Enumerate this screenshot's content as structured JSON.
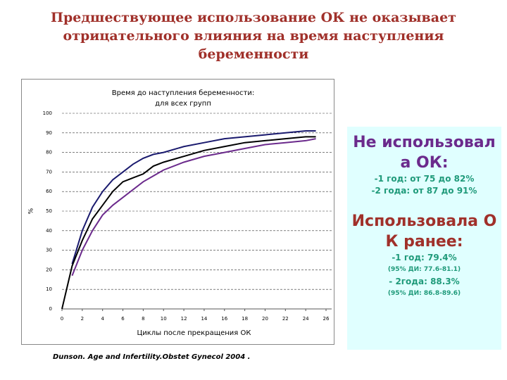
{
  "slide": {
    "title": "Предшествующее использование ОК не оказывает отрицательного влияния на время наступления беременности",
    "citation": "Dunson. Age and Infertility.Obstet Gynecol 2004 .",
    "side_box": {
      "heading1": "Не использовала ОК:",
      "items1": [
        "-1 год: от 75 до 82%",
        "-2 года: от 87 до 91%"
      ],
      "heading2": "Использовала ОК ранее:",
      "items2": [
        "-1 год: 79.4%",
        "(95% ДИ: 77.6-81.1)",
        "- 2года: 88.3%",
        "(95% ДИ: 86.8-89.6)"
      ]
    }
  },
  "chart_data": {
    "type": "line",
    "title": "Время до наступления беременности: для всех групп",
    "xlabel": "Циклы после прекращения ОК",
    "ylabel": "%",
    "x": [
      0,
      1,
      2,
      3,
      4,
      5,
      6,
      7,
      8,
      9,
      10,
      12,
      14,
      16,
      18,
      20,
      22,
      24,
      25
    ],
    "series": [
      {
        "color": "#1a1a6e",
        "values": [
          null,
          23,
          40,
          52,
          60,
          66,
          70,
          74,
          77,
          79,
          80,
          83,
          85,
          87,
          88,
          89,
          90,
          91,
          91
        ]
      },
      {
        "color": "#000000",
        "values": [
          0,
          22,
          35,
          46,
          53,
          60,
          65,
          67,
          69,
          73,
          75,
          78,
          81,
          83,
          85,
          86,
          87,
          88,
          88
        ]
      },
      {
        "color": "#6b2a8c",
        "values": [
          null,
          17,
          30,
          40,
          48,
          53,
          57,
          61,
          65,
          68,
          71,
          75,
          78,
          80,
          82,
          84,
          85,
          86,
          87
        ]
      }
    ],
    "xlim": [
      0,
      26
    ],
    "xticks": [
      0,
      2,
      4,
      6,
      8,
      10,
      12,
      14,
      16,
      18,
      20,
      22,
      24,
      26
    ],
    "ylim": [
      0,
      100
    ],
    "yticks": [
      0,
      10,
      20,
      30,
      40,
      50,
      60,
      70,
      80,
      90,
      100
    ],
    "grid": true
  }
}
